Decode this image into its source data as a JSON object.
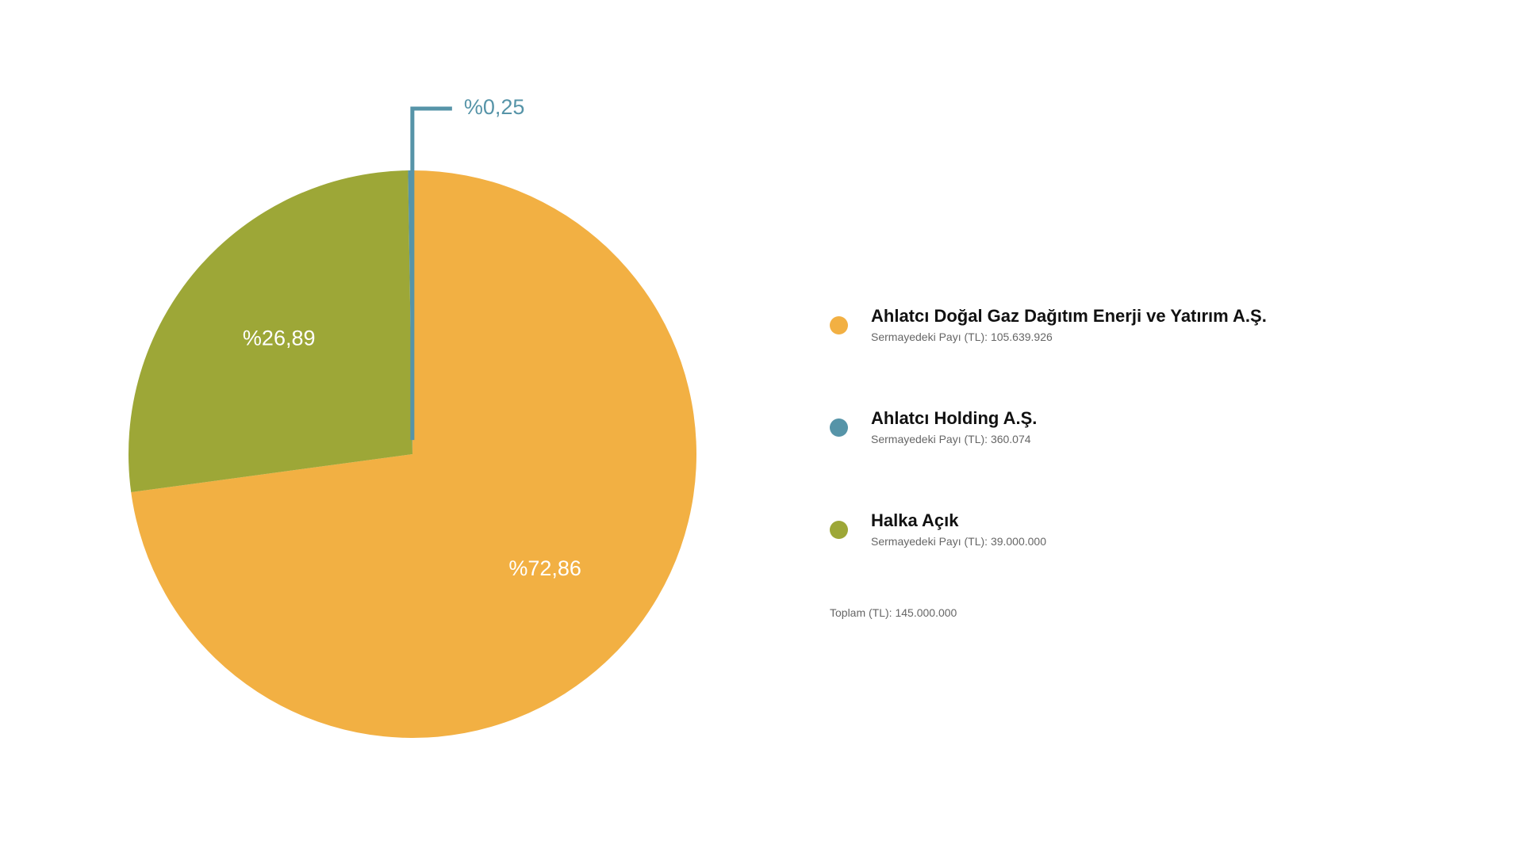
{
  "chart_data": {
    "type": "pie",
    "slices": [
      {
        "name": "Ahlatcı Doğal Gaz Dağıtım Enerji ve Yatırım A.Ş.",
        "value": 72.86,
        "label": "%72,86",
        "color": "#F2B043",
        "detail": "Sermayedeki Payı (TL): 105.639.926"
      },
      {
        "name": "Halka Açık",
        "value": 26.89,
        "label": "%26,89",
        "color": "#9DA737",
        "detail": "Sermayedeki Payı (TL): 39.000.000"
      },
      {
        "name": "Ahlatcı Holding A.Ş.",
        "value": 0.25,
        "label": "%0,25",
        "color": "#5694A8",
        "detail": "Sermayedeki Payı (TL): 360.074"
      }
    ],
    "legend_order": [
      0,
      2,
      1
    ],
    "legend_position": "right",
    "total": "Toplam (TL): 145.000.000"
  }
}
